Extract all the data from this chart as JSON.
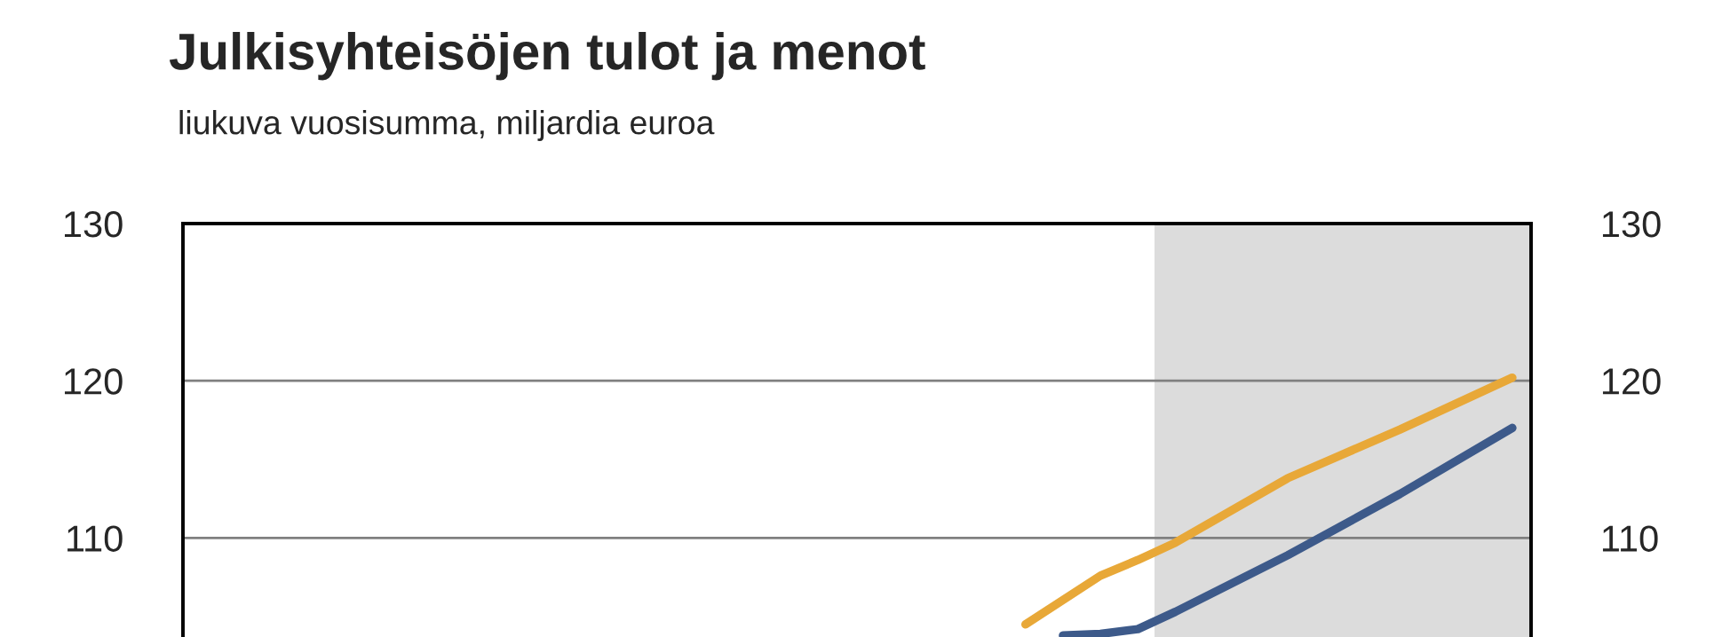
{
  "chart_data": {
    "type": "line",
    "title": "Julkisyhteisöjen tulot ja menot",
    "subtitle": "liukuva vuosisumma, miljardia euroa",
    "categories": [
      null,
      null,
      null,
      null,
      null,
      null,
      null,
      null,
      null,
      null,
      null,
      null,
      null,
      null,
      null,
      null,
      null,
      null,
      null,
      null,
      null,
      null,
      null,
      null,
      null,
      null,
      null,
      null,
      null,
      null,
      null,
      null,
      null,
      null,
      null,
      null
    ],
    "ylim": [
      103.7,
      130
    ],
    "yticks": [
      110,
      120,
      130
    ],
    "y2lim": [
      103.7,
      130
    ],
    "y2ticks": [
      110,
      120,
      130
    ],
    "grid": "y",
    "legend": false,
    "marker": "none",
    "line_style": "solid",
    "series": [
      {
        "color": "#e8a838",
        "values": [
          null,
          null,
          null,
          null,
          null,
          null,
          null,
          null,
          null,
          null,
          null,
          null,
          null,
          null,
          null,
          null,
          null,
          null,
          null,
          null,
          null,
          null,
          104.5,
          null,
          107.6,
          108.6,
          109.7,
          null,
          null,
          113.8,
          null,
          null,
          116.9,
          null,
          null,
          120.2
        ]
      },
      {
        "color": "#3d5a8a",
        "values": [
          null,
          null,
          null,
          null,
          null,
          null,
          null,
          null,
          null,
          null,
          null,
          null,
          null,
          null,
          null,
          null,
          null,
          null,
          null,
          null,
          null,
          null,
          null,
          103.8,
          103.9,
          104.2,
          105.3,
          null,
          null,
          108.9,
          null,
          null,
          112.8,
          null,
          null,
          117.0
        ]
      }
    ]
  }
}
